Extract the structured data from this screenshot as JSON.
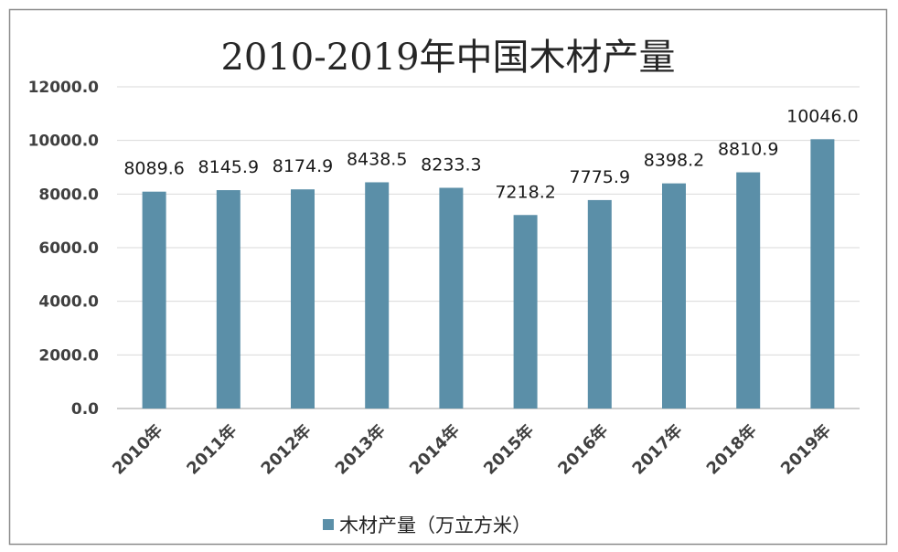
{
  "chart_data": {
    "type": "bar",
    "title": "2010-2019年中国木材产量",
    "categories": [
      "2010年",
      "2011年",
      "2012年",
      "2013年",
      "2014年",
      "2015年",
      "2016年",
      "2017年",
      "2018年",
      "2019年"
    ],
    "series": [
      {
        "name": "木材产量（万立方米）",
        "values": [
          8089.6,
          8145.9,
          8174.9,
          8438.5,
          8233.3,
          7218.2,
          7775.9,
          8398.2,
          8810.9,
          10046.0
        ],
        "data_labels": [
          "8089.6",
          "8145.9",
          "8174.9",
          "8438.5",
          "8233.3",
          "7218.2",
          "7775.9",
          "8398.2",
          "8810.9",
          "10046.0"
        ]
      }
    ],
    "ylim": [
      0,
      12000
    ],
    "yticks": [
      "0.0",
      "2000.0",
      "4000.0",
      "6000.0",
      "8000.0",
      "10000.0",
      "12000.0"
    ],
    "xlabel": "",
    "ylabel": "",
    "grid": true,
    "legend": "bottom",
    "colors": {
      "bar": "#5b8fa8",
      "grid": "#d9d9d9",
      "frame": "#8c8c8c"
    }
  }
}
